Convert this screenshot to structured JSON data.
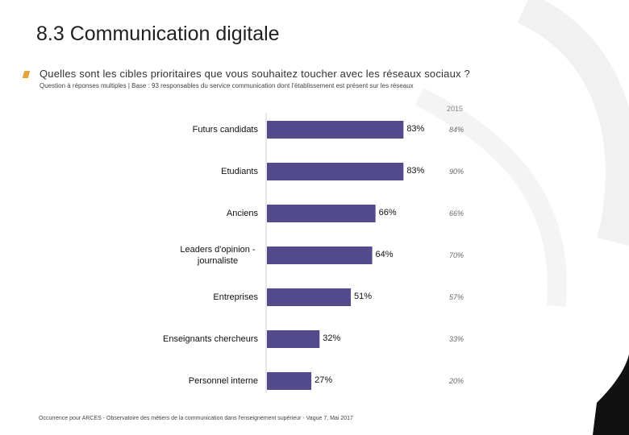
{
  "page": {
    "title": "8.3 Communication digitale",
    "question": "Quelles sont les cibles prioritaires que vous souhaitez toucher avec les réseaux sociaux ?",
    "subquestion": "Question à réponses multiples | Base : 93 responsables du service communication dont l’établissement est présent sur les réseaux",
    "footer": "Occurrence pour ARCES - Observatoire des métiers de la communication dans l'enseignement supérieur - Vague 7, Mai 2017",
    "accent_color": "#e8a33a"
  },
  "chart_data": {
    "type": "bar",
    "orientation": "horizontal",
    "categories": [
      "Futurs candidats",
      "Etudiants",
      "Anciens",
      "Leaders d'opinion - journaliste",
      "Entreprises",
      "Enseignants chercheurs",
      "Personnel interne"
    ],
    "values": [
      83,
      83,
      66,
      64,
      51,
      32,
      27
    ],
    "value_labels": [
      "83%",
      "83%",
      "66%",
      "64%",
      "51%",
      "32%",
      "27%"
    ],
    "comparison_label": "2015",
    "comparison_values": [
      84,
      90,
      66,
      70,
      57,
      33,
      20
    ],
    "comparison_labels": [
      "84%",
      "90%",
      "66%",
      "70%",
      "57%",
      "33%",
      "20%"
    ],
    "xlim": [
      0,
      100
    ],
    "bar_color": "#524a8a",
    "grid": false
  }
}
